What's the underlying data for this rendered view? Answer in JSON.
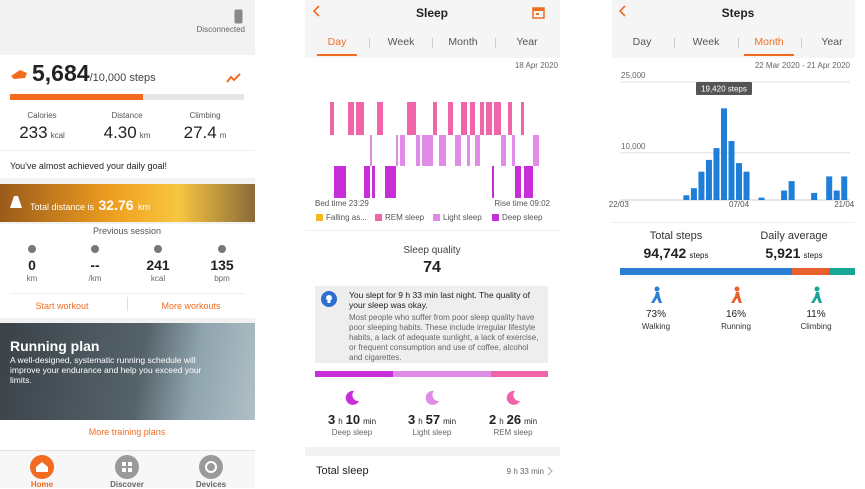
{
  "home": {
    "status": "Disconnected",
    "steps": "5,684",
    "steps_goal": "/10,000 steps",
    "stats": [
      {
        "label": "Calories",
        "value": "233",
        "unit": "kcal"
      },
      {
        "label": "Distance",
        "value": "4.30",
        "unit": "km"
      },
      {
        "label": "Climbing",
        "value": "27.4",
        "unit": "m"
      }
    ],
    "goal_message": "You've almost achieved your daily goal!",
    "banner": {
      "text": "Total distance is",
      "value": "32.76",
      "unit": "km"
    },
    "previous_session": {
      "title": "Previous session",
      "items": [
        {
          "value": "0",
          "unit": "km"
        },
        {
          "value": "--",
          "unit": "/km"
        },
        {
          "value": "241",
          "unit": "kcal"
        },
        {
          "value": "135",
          "unit": "bpm"
        }
      ]
    },
    "actions": [
      "Start workout",
      "More workouts"
    ],
    "running_plan": {
      "title": "Running plan",
      "text": "A well-designed, systematic running schedule will improve your endurance and help you exceed your limits."
    },
    "more_link": "More training plans",
    "nav": [
      "Home",
      "Discover",
      "Devices"
    ]
  },
  "sleep": {
    "title": "Sleep",
    "tabs": [
      "Day",
      "Week",
      "Month",
      "Year"
    ],
    "date": "18 Apr 2020",
    "bed_time": "Bed time 23:29",
    "rise_time": "Rise time 09:02",
    "legend": [
      {
        "name": "Falling as...",
        "color": "#f5b820"
      },
      {
        "name": "REM sleep",
        "color": "#f064aa"
      },
      {
        "name": "Light sleep",
        "color": "#e08ce6"
      },
      {
        "name": "Deep sleep",
        "color": "#c82ed8"
      }
    ],
    "quality_label": "Sleep quality",
    "quality": "74",
    "message_title": "You slept for 9 h 33 min last night. The quality of your sleep was okay.",
    "message_body": "Most people who suffer from poor sleep quality have poor sleeping habits. These include irregular lifestyle habits, a lack of adequate sunlight, a lack of exercise, or frequent consumption and use of coffee, alcohol and cigarettes.",
    "duration_units": [
      "h",
      "min"
    ],
    "breakdown": [
      {
        "hours": "3",
        "minutes": "10",
        "label": "Deep sleep"
      },
      {
        "hours": "3",
        "minutes": "57",
        "label": "Light sleep"
      },
      {
        "hours": "2",
        "minutes": "26",
        "label": "REM sleep"
      }
    ],
    "total_label": "Total sleep",
    "total": "9 h 33 min"
  },
  "steps": {
    "title": "Steps",
    "tabs": [
      "Day",
      "Week",
      "Month",
      "Year"
    ],
    "date_range": "22 Mar 2020 - 21 Apr 2020",
    "chart": {
      "type": "bar",
      "color": "#1f7fd8",
      "categories": [
        "22/03",
        null,
        null,
        null,
        null,
        null,
        null,
        null,
        null,
        null,
        null,
        null,
        null,
        null,
        null,
        null,
        "07/04",
        null,
        null,
        null,
        null,
        null,
        null,
        null,
        null,
        null,
        null,
        null,
        null,
        null,
        "21/04"
      ],
      "values": [
        0,
        0,
        0,
        0,
        0,
        0,
        0,
        0,
        0,
        1000,
        2500,
        6000,
        8500,
        11000,
        19420,
        12500,
        7822,
        6000,
        0,
        500,
        0,
        0,
        2000,
        4000,
        0,
        0,
        1500,
        0,
        5000,
        2000,
        5000
      ],
      "ylim": [
        0,
        25000
      ],
      "yticks": [
        {
          "value": 25000,
          "label": "25,000"
        },
        {
          "value": 10000,
          "label": "10,000"
        }
      ],
      "grid": true,
      "tooltip": "19,420 steps"
    },
    "totals": [
      {
        "label": "Total steps",
        "value": "94,742",
        "unit": "steps"
      },
      {
        "label": "Daily average",
        "value": "5,921",
        "unit": "steps"
      }
    ],
    "activities": [
      {
        "value": 73,
        "label": "73%",
        "name": "Walking",
        "color": "#2a7fd4"
      },
      {
        "value": 16,
        "label": "16%",
        "name": "Running",
        "color": "#e8612c"
      },
      {
        "value": 11,
        "label": "11%",
        "name": "Climbing",
        "color": "#17a596"
      }
    ]
  }
}
